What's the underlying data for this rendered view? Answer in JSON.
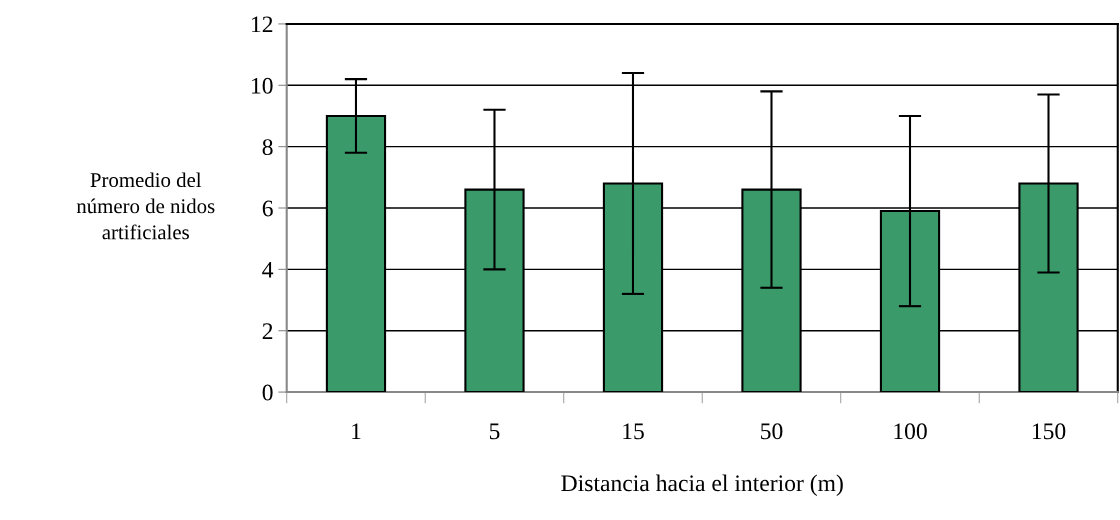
{
  "chart_data": {
    "type": "bar",
    "xlabel": "Distancia hacia el interior (m)",
    "ylabel": "Promedio del\nnúmero de nidos\nartificiales",
    "categories": [
      "1",
      "5",
      "15",
      "50",
      "100",
      "150"
    ],
    "values": [
      9.0,
      6.6,
      6.8,
      6.6,
      5.9,
      6.8
    ],
    "errors": [
      1.2,
      2.6,
      3.6,
      3.2,
      3.1,
      2.9
    ],
    "color": "#3a9a6a",
    "ylim": [
      0,
      12
    ],
    "yticks": [
      0,
      2,
      4,
      6,
      8,
      10,
      12
    ],
    "grid": "y"
  }
}
